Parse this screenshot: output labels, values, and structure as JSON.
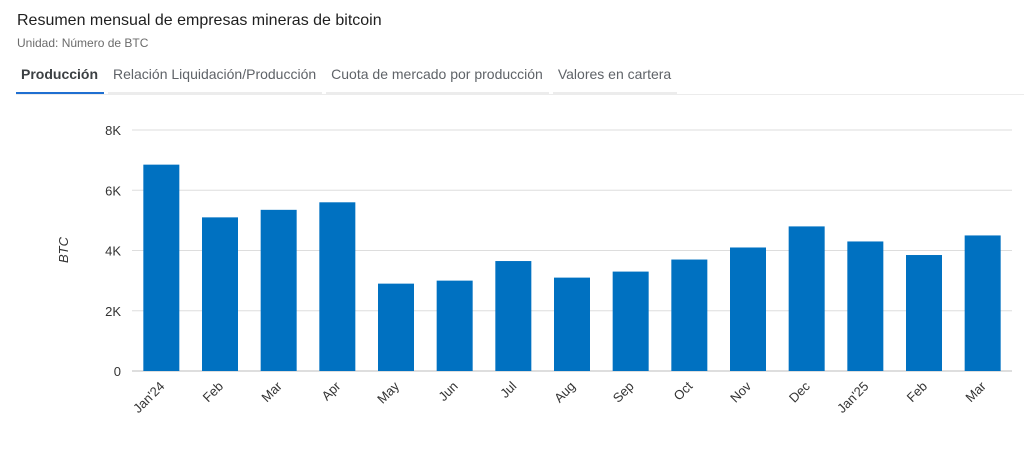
{
  "header": {
    "title": "Resumen mensual de empresas mineras de bitcoin",
    "subtitle": "Unidad: Número de BTC"
  },
  "tabs": [
    {
      "label": "Producción",
      "active": true
    },
    {
      "label": "Relación Liquidación/Producción",
      "active": false
    },
    {
      "label": "Cuota de mercado por producción",
      "active": false
    },
    {
      "label": "Valores en cartera",
      "active": false
    }
  ],
  "colors": {
    "bar": "#0071c1",
    "accent": "#1f6fd1",
    "grid": "#dddddd"
  },
  "chart_data": {
    "type": "bar",
    "title": "",
    "xlabel": "",
    "ylabel": "BTC",
    "ylim": [
      0,
      8000
    ],
    "yticks": [
      {
        "value": 0,
        "label": "0"
      },
      {
        "value": 2000,
        "label": "2K"
      },
      {
        "value": 4000,
        "label": "4K"
      },
      {
        "value": 6000,
        "label": "6K"
      },
      {
        "value": 8000,
        "label": "8K"
      }
    ],
    "grid": true,
    "categories": [
      "Jan'24",
      "Feb",
      "Mar",
      "Apr",
      "May",
      "Jun",
      "Jul",
      "Aug",
      "Sep",
      "Oct",
      "Nov",
      "Dec",
      "Jan'25",
      "Feb",
      "Mar"
    ],
    "values": [
      6850,
      5100,
      5350,
      5600,
      2900,
      3000,
      3650,
      3100,
      3300,
      3700,
      4100,
      4800,
      4300,
      3850,
      4500
    ]
  }
}
